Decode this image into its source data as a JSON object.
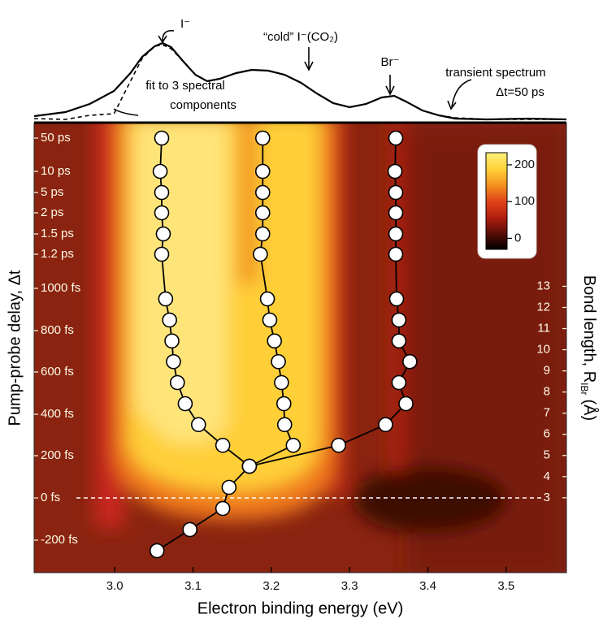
{
  "chart_data": [
    {
      "type": "line",
      "xlim": [
        2.897,
        3.577
      ],
      "ylim": [
        0,
        1.5
      ],
      "x": [
        2.897,
        2.937,
        2.968,
        2.999,
        3.02,
        3.035,
        3.051,
        3.061,
        3.072,
        3.087,
        3.103,
        3.118,
        3.134,
        3.155,
        3.175,
        3.196,
        3.217,
        3.238,
        3.258,
        3.279,
        3.3,
        3.321,
        3.341,
        3.357,
        3.372,
        3.393,
        3.414,
        3.435,
        3.476,
        3.528,
        3.577
      ],
      "series": [
        {
          "color": "#000000",
          "dashed": false,
          "values": [
            0.07,
            0.12,
            0.22,
            0.38,
            0.6,
            0.8,
            0.93,
            0.97,
            0.92,
            0.75,
            0.58,
            0.5,
            0.53,
            0.6,
            0.64,
            0.63,
            0.58,
            0.48,
            0.35,
            0.23,
            0.18,
            0.22,
            0.3,
            0.32,
            0.25,
            0.14,
            0.08,
            0.04,
            0.03,
            0.04,
            0.03
          ]
        },
        {
          "color": "#000000",
          "dashed": true,
          "values": [
            0.04,
            0.03,
            0.08,
            0.1,
            0.5,
            0.78,
            0.93,
            0.95,
            0.9,
            0.75,
            0.58,
            0.5,
            0.53,
            0.6,
            0.64,
            0.63,
            0.58,
            0.48,
            0.35,
            0.23,
            0.18,
            0.22,
            0.3,
            0.32,
            0.25,
            0.14,
            0.08,
            0.05,
            0.03,
            0.03,
            0.03
          ]
        }
      ],
      "annotations": [
        "I⁻",
        "“cold” I⁻(CO₂)",
        "Br⁻",
        "transient spectrum",
        "Δt=50 ps",
        "fit to 3 spectral",
        "components"
      ]
    },
    {
      "type": "scatter",
      "x_label": "Electron binding energy (eV)",
      "y_label": "Pump-probe delay, Δt",
      "y2_label": "Bond length, R",
      "y2_label_sub": "IBr",
      "y2_label_unit": "(Å)",
      "xlim": [
        2.897,
        3.577
      ],
      "xticks": [
        {
          "value": 3.0,
          "label": "3.0"
        },
        3.1,
        3.2,
        3.3,
        3.4,
        3.5
      ],
      "yticks": [
        {
          "value": 50000,
          "label": "50 ps"
        },
        {
          "value": 10000,
          "label": "10 ps"
        },
        {
          "value": 5000,
          "label": "5 ps"
        },
        {
          "value": 2000,
          "label": "2 ps"
        },
        {
          "value": 1500,
          "label": "1.5 ps"
        },
        {
          "value": 1200,
          "label": "1.2 ps"
        },
        {
          "value": 1000,
          "label": "1000 fs"
        },
        {
          "value": 800,
          "label": "800 fs"
        },
        {
          "value": 600,
          "label": "600 fs"
        },
        {
          "value": 400,
          "label": "400 fs"
        },
        {
          "value": 200,
          "label": "200 fs"
        },
        {
          "value": 0,
          "label": "0 fs"
        },
        {
          "value": -200,
          "label": "-200 fs"
        }
      ],
      "y2lim": [
        -0.54,
        20.7
      ],
      "y2ticks": [
        3,
        4,
        5,
        6,
        7,
        8,
        9,
        10,
        11,
        12,
        13
      ],
      "dashed_zero_line": true,
      "marker_color": "#ffffff",
      "series": [
        {
          "color": "#000000",
          "x": [
            3.06,
            3.058,
            3.06,
            3.06,
            3.062,
            3.06,
            3.065,
            3.07,
            3.073,
            3.075,
            3.08,
            3.09,
            3.107,
            3.138,
            3.172,
            3.146,
            3.138,
            3.096,
            3.054
          ],
          "y": [
            50000,
            10000,
            5000,
            2000,
            1500,
            1200,
            950,
            850,
            750,
            650,
            550,
            450,
            350,
            250,
            150,
            50,
            -50,
            -150,
            -250
          ]
        },
        {
          "color": "#000000",
          "x": [
            3.189,
            3.189,
            3.189,
            3.189,
            3.189,
            3.186,
            3.195,
            3.198,
            3.204,
            3.209,
            3.213,
            3.216,
            3.217,
            3.228,
            3.172
          ],
          "y": [
            50000,
            10000,
            5000,
            2000,
            1500,
            1200,
            950,
            850,
            750,
            650,
            550,
            450,
            350,
            250,
            150
          ]
        },
        {
          "color": "#000000",
          "x": [
            3.359,
            3.358,
            3.359,
            3.359,
            3.359,
            3.359,
            3.36,
            3.363,
            3.363,
            3.377,
            3.363,
            3.372,
            3.346,
            3.286,
            3.172
          ],
          "y": [
            50000,
            10000,
            5000,
            2000,
            1500,
            1200,
            950,
            850,
            750,
            650,
            550,
            450,
            350,
            250,
            150
          ]
        }
      ],
      "colorbar": {
        "lim": [
          -30,
          233
        ],
        "ticks": [
          0,
          100,
          200
        ],
        "colors": [
          "#000000",
          "#5a0d06",
          "#b3200f",
          "#e0441a",
          "#f5921f",
          "#ffd23a",
          "#fff07a"
        ]
      }
    }
  ]
}
